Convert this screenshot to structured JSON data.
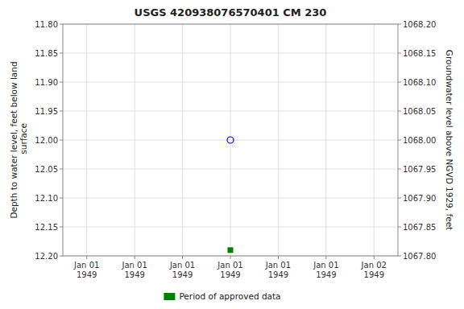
{
  "chart_data": {
    "type": "scatter",
    "title": "USGS 420938076570401 CM 230",
    "y_label": "Depth to water level, feet below land\n surface",
    "y2_label": "Groundwater level above NGVD 1929, feet",
    "categories": [
      "Jan 01\n1949",
      "Jan 01\n1949",
      "Jan 01\n1949",
      "Jan 01\n1949",
      "Jan 01\n1949",
      "Jan 01\n1949",
      "Jan 02\n1949"
    ],
    "series": [
      {
        "color": "blue",
        "marker": "open-circle",
        "values": [
          null,
          null,
          null,
          12.0,
          null,
          null,
          null
        ]
      },
      {
        "name": "Period of approved data",
        "color": "#008000",
        "marker": "square",
        "values": [
          null,
          null,
          null,
          12.19,
          null,
          null,
          null
        ]
      }
    ],
    "ylim": [
      12.2,
      11.8
    ],
    "yticks": [
      {
        "value": 11.8,
        "label": "11.80"
      },
      {
        "value": 11.85,
        "label": "11.85"
      },
      {
        "value": 11.9,
        "label": "11.90"
      },
      {
        "value": 11.95,
        "label": "11.95"
      },
      {
        "value": 12.0,
        "label": "12.00"
      },
      {
        "value": 12.05,
        "label": "12.05"
      },
      {
        "value": 12.1,
        "label": "12.10"
      },
      {
        "value": 12.15,
        "label": "12.15"
      },
      {
        "value": 12.2,
        "label": "12.20"
      }
    ],
    "y2lim": [
      1067.8,
      1068.2
    ],
    "y2ticks": [
      {
        "value": 1068.2,
        "label": "1068.20"
      },
      {
        "value": 1068.15,
        "label": "1068.15"
      },
      {
        "value": 1068.1,
        "label": "1068.10"
      },
      {
        "value": 1068.05,
        "label": "1068.05"
      },
      {
        "value": 1068.0,
        "label": "1068.00"
      },
      {
        "value": 1067.95,
        "label": "1067.95"
      },
      {
        "value": 1067.9,
        "label": "1067.90"
      },
      {
        "value": 1067.85,
        "label": "1067.85"
      },
      {
        "value": 1067.8,
        "label": "1067.80"
      }
    ],
    "grid": true,
    "legend": "bottom"
  }
}
